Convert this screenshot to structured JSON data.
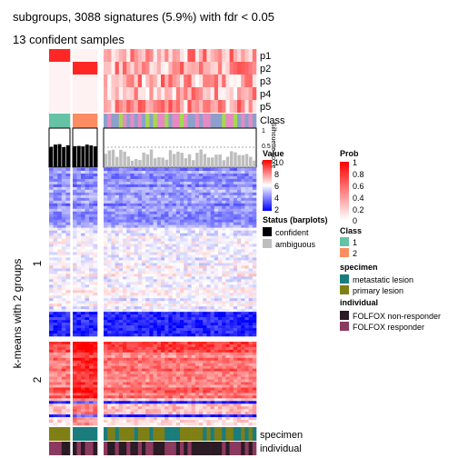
{
  "chart_data": {
    "type": "heatmap",
    "title": "subgroups, 3088 signatures (5.9%) with fdr < 0.05",
    "subtitle": "13 confident samples",
    "row_title": "k-means with 2 groups",
    "row_groups": [
      "1",
      "2"
    ],
    "prob_rows": [
      "p1",
      "p2",
      "p3",
      "p4",
      "p5"
    ],
    "annotation_labels": {
      "class": "Class",
      "silhouette": "Silhouette score",
      "specimen": "specimen",
      "individual": "individual"
    },
    "silhouette_ticks": [
      "1",
      "0.5",
      "0"
    ],
    "legends": {
      "value": {
        "title": "Value",
        "ticks": [
          "10",
          "8",
          "6",
          "4",
          "2"
        ],
        "colors": [
          "#ff0000",
          "#ffffff",
          "#0000ff"
        ]
      },
      "status": {
        "title": "Status (barplots)",
        "items": [
          {
            "label": "confident",
            "color": "#000000"
          },
          {
            "label": "ambiguous",
            "color": "#bebebe"
          }
        ]
      },
      "prob": {
        "title": "Prob",
        "ticks": [
          "1",
          "0.8",
          "0.6",
          "0.4",
          "0.2",
          "0"
        ],
        "colors": [
          "#ff0000",
          "#ffffff"
        ]
      },
      "class": {
        "title": "Class",
        "items": [
          {
            "label": "1",
            "color": "#66c2a5"
          },
          {
            "label": "2",
            "color": "#fc8d62"
          }
        ]
      },
      "specimen": {
        "title": "specimen",
        "items": [
          {
            "label": "metastatic lesion",
            "color": "#1b7c7c"
          },
          {
            "label": "primary lesion",
            "color": "#7f7f15"
          }
        ]
      },
      "individual": {
        "title": "individual",
        "items": [
          {
            "label": "FOLFOX non-responder",
            "color": "#2b1b24"
          },
          {
            "label": "FOLFOX responder",
            "color": "#8b3a5f"
          }
        ]
      }
    }
  }
}
